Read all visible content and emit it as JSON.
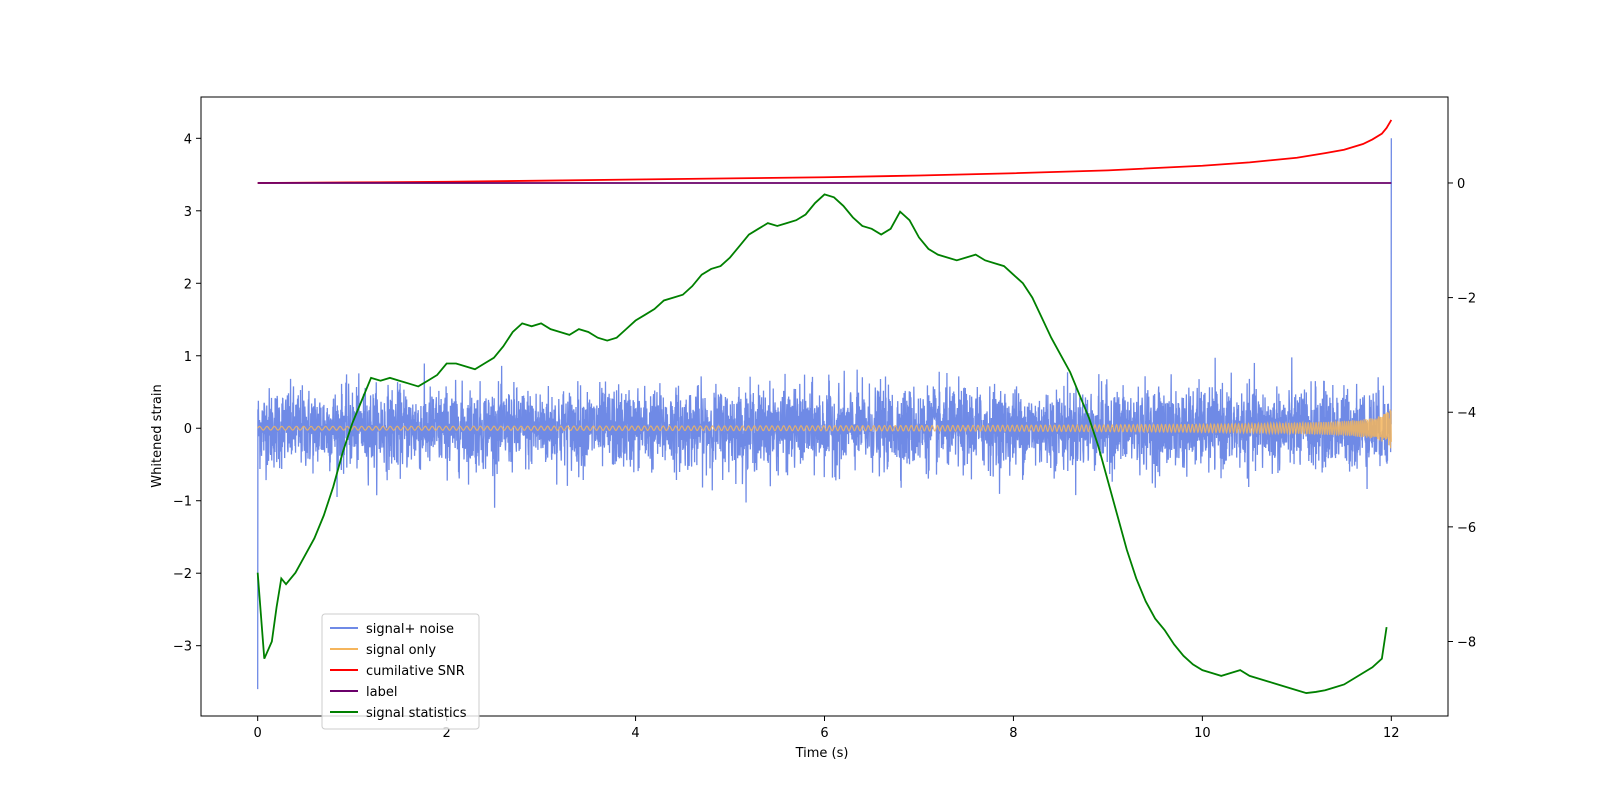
{
  "chart_data": {
    "type": "line",
    "title": "",
    "xlabel": "Time (s)",
    "ylabel": "Whitened strain",
    "y2label": "",
    "xlim": [
      -0.6,
      12.6
    ],
    "ylim": [
      -3.97,
      4.57
    ],
    "y2lim": [
      -9.3,
      1.5
    ],
    "xticks": [
      0,
      2,
      4,
      6,
      8,
      10,
      12
    ],
    "yticks": [
      -3,
      -2,
      -1,
      0,
      1,
      2,
      3,
      4
    ],
    "y2ticks": [
      -8,
      -6,
      -4,
      -2,
      0
    ],
    "grid": false,
    "legend_position": "lower-left",
    "series": [
      {
        "name": "signal+ noise",
        "axis": "left",
        "color": "#6f8ae6",
        "kind": "noise",
        "x_range": [
          0,
          12
        ],
        "amplitude_typical": 0.6,
        "amplitude_peak": 1.1,
        "start_spike": -3.6,
        "end_spike": 4.0
      },
      {
        "name": "signal only",
        "axis": "left",
        "color": "#f5b55c",
        "kind": "chirp",
        "x_range": [
          0,
          12
        ],
        "amplitude_end": 0.3
      },
      {
        "name": "cumilative SNR",
        "axis": "right",
        "color": "#ff0000",
        "x": [
          0,
          1,
          2,
          3,
          4,
          5,
          6,
          7,
          8,
          9,
          10,
          10.5,
          11,
          11.3,
          11.5,
          11.7,
          11.8,
          11.9,
          11.95,
          12
        ],
        "y": [
          0,
          0.01,
          0.02,
          0.04,
          0.06,
          0.08,
          0.1,
          0.13,
          0.17,
          0.22,
          0.3,
          0.36,
          0.44,
          0.52,
          0.58,
          0.68,
          0.76,
          0.86,
          0.96,
          1.1
        ]
      },
      {
        "name": "label",
        "axis": "right",
        "color": "#6a006a",
        "x": [
          0,
          12
        ],
        "y": [
          0,
          0
        ]
      },
      {
        "name": "signal statistics",
        "axis": "right",
        "color": "#008000",
        "x": [
          0,
          0.07,
          0.15,
          0.2,
          0.25,
          0.3,
          0.4,
          0.5,
          0.6,
          0.7,
          0.8,
          0.9,
          1.0,
          1.1,
          1.2,
          1.3,
          1.4,
          1.5,
          1.6,
          1.7,
          1.8,
          1.9,
          2.0,
          2.1,
          2.2,
          2.3,
          2.4,
          2.5,
          2.6,
          2.7,
          2.8,
          2.9,
          3.0,
          3.1,
          3.2,
          3.3,
          3.4,
          3.5,
          3.6,
          3.7,
          3.8,
          3.9,
          4.0,
          4.1,
          4.2,
          4.3,
          4.4,
          4.5,
          4.6,
          4.7,
          4.8,
          4.9,
          5.0,
          5.1,
          5.2,
          5.3,
          5.4,
          5.5,
          5.6,
          5.7,
          5.8,
          5.9,
          6.0,
          6.1,
          6.2,
          6.3,
          6.4,
          6.5,
          6.6,
          6.7,
          6.8,
          6.9,
          7.0,
          7.1,
          7.2,
          7.3,
          7.4,
          7.5,
          7.6,
          7.7,
          7.8,
          7.9,
          8.0,
          8.1,
          8.2,
          8.3,
          8.4,
          8.5,
          8.6,
          8.7,
          8.8,
          8.9,
          9.0,
          9.1,
          9.2,
          9.3,
          9.4,
          9.5,
          9.6,
          9.7,
          9.8,
          9.9,
          10.0,
          10.1,
          10.2,
          10.3,
          10.4,
          10.5,
          10.6,
          10.7,
          10.8,
          10.9,
          11.0,
          11.1,
          11.2,
          11.3,
          11.4,
          11.5,
          11.6,
          11.7,
          11.8,
          11.9,
          11.95
        ],
        "y": [
          -6.8,
          -8.3,
          -8.0,
          -7.4,
          -6.9,
          -7.0,
          -6.8,
          -6.5,
          -6.2,
          -5.8,
          -5.3,
          -4.7,
          -4.2,
          -3.8,
          -3.4,
          -3.45,
          -3.4,
          -3.45,
          -3.5,
          -3.55,
          -3.45,
          -3.35,
          -3.15,
          -3.15,
          -3.2,
          -3.25,
          -3.15,
          -3.05,
          -2.85,
          -2.6,
          -2.45,
          -2.5,
          -2.45,
          -2.55,
          -2.6,
          -2.65,
          -2.55,
          -2.6,
          -2.7,
          -2.75,
          -2.7,
          -2.55,
          -2.4,
          -2.3,
          -2.2,
          -2.05,
          -2.0,
          -1.95,
          -1.8,
          -1.6,
          -1.5,
          -1.45,
          -1.3,
          -1.1,
          -0.9,
          -0.8,
          -0.7,
          -0.75,
          -0.7,
          -0.65,
          -0.55,
          -0.35,
          -0.2,
          -0.25,
          -0.4,
          -0.6,
          -0.75,
          -0.8,
          -0.9,
          -0.8,
          -0.5,
          -0.65,
          -0.95,
          -1.15,
          -1.25,
          -1.3,
          -1.35,
          -1.3,
          -1.25,
          -1.35,
          -1.4,
          -1.45,
          -1.6,
          -1.75,
          -2.0,
          -2.35,
          -2.7,
          -3.0,
          -3.3,
          -3.7,
          -4.1,
          -4.6,
          -5.2,
          -5.8,
          -6.4,
          -6.9,
          -7.3,
          -7.6,
          -7.8,
          -8.05,
          -8.25,
          -8.4,
          -8.5,
          -8.55,
          -8.6,
          -8.55,
          -8.5,
          -8.6,
          -8.65,
          -8.7,
          -8.75,
          -8.8,
          -8.85,
          -8.9,
          -8.88,
          -8.85,
          -8.8,
          -8.75,
          -8.65,
          -8.55,
          -8.45,
          -8.3,
          -7.75
        ]
      }
    ]
  }
}
